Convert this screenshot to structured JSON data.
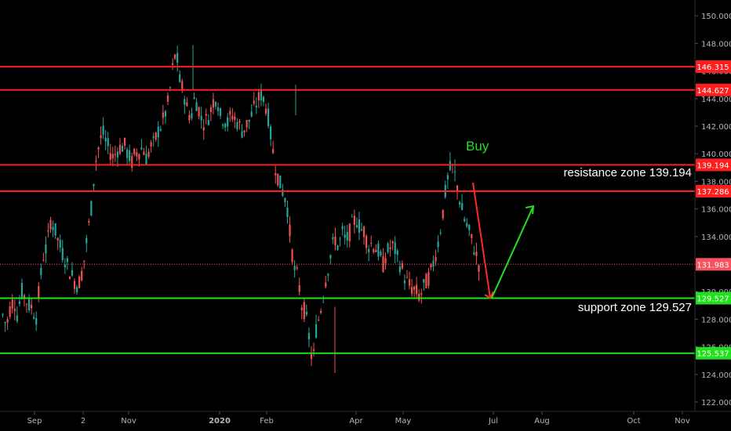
{
  "colors": {
    "background": "#000000",
    "resistance": "#ff1e1e",
    "support": "#22e01e",
    "up_candle": "#26a69a",
    "down_candle": "#ef5350",
    "axis_text": "#b2b5be",
    "current_price": "#f7525f",
    "arrow_down": "#ff2a2a",
    "arrow_up": "#22e01e"
  },
  "chart_data": {
    "type": "candlestick",
    "ylim": [
      121.6,
      150.9
    ],
    "y_ticks": [
      "122.000",
      "124.000",
      "126.000",
      "128.000",
      "130.000",
      "132.000",
      "134.000",
      "136.000",
      "138.000",
      "140.000",
      "142.000",
      "144.000",
      "146.000",
      "148.000",
      "150.000"
    ],
    "x_ticks": [
      "Sep",
      "2",
      "Nov",
      "2020",
      "Feb",
      "Apr",
      "May",
      "Jul",
      "Aug",
      "Oct",
      "Nov"
    ],
    "horizontal_levels": [
      {
        "price": 146.315,
        "label": "146.315",
        "kind": "resistance"
      },
      {
        "price": 144.627,
        "label": "144.627",
        "kind": "resistance"
      },
      {
        "price": 139.194,
        "label": "139.194",
        "kind": "resistance"
      },
      {
        "price": 137.286,
        "label": "137.286",
        "kind": "resistance"
      },
      {
        "price": 129.527,
        "label": "129.527",
        "kind": "support"
      },
      {
        "price": 125.537,
        "label": "125.537",
        "kind": "support"
      }
    ],
    "current_price": {
      "price": 131.983,
      "label": "131.983"
    },
    "annotations": {
      "buy": "Buy",
      "resistance": "resistance zone 139.194",
      "support": "support zone 129.527"
    },
    "price_path": [
      [
        128.3,
        127.5
      ],
      [
        128.8,
        129.5
      ],
      [
        128.2,
        130.1
      ],
      [
        129.6,
        129.0
      ],
      [
        128.9,
        128.0
      ],
      [
        130.5,
        132.6
      ],
      [
        133.3,
        135.2
      ],
      [
        134.6,
        133.7
      ],
      [
        132.9,
        132.3
      ],
      [
        131.6,
        131.0
      ],
      [
        130.5,
        130.8
      ],
      [
        132.2,
        134.2
      ],
      [
        136.1,
        139.2
      ],
      [
        140.5,
        141.6
      ],
      [
        140.8,
        140.2
      ],
      [
        139.7,
        140.3
      ],
      [
        140.5,
        140.6
      ],
      [
        139.9,
        139.4
      ],
      [
        140.1,
        140.2
      ],
      [
        140.5,
        139.6
      ],
      [
        140.5,
        140.7
      ],
      [
        141.6,
        142.1
      ],
      [
        142.9,
        143.9
      ],
      [
        146.1,
        147.5
      ],
      [
        145.2,
        144.5
      ],
      [
        143.2,
        142.6
      ],
      [
        144.1,
        143.4
      ],
      [
        142.3,
        142.4
      ],
      [
        142.8,
        143.8
      ],
      [
        144.2,
        142.7
      ],
      [
        142.5,
        142.2
      ],
      [
        142.9,
        142.5
      ],
      [
        142.1,
        141.6
      ],
      [
        142.1,
        142.5
      ],
      [
        143.2,
        143.8
      ],
      [
        144.3,
        143.8
      ],
      [
        142.6,
        140.6
      ],
      [
        138.9,
        137.9
      ],
      [
        137.2,
        136.4
      ],
      [
        133.7,
        131.6
      ],
      [
        131.0,
        129.0
      ],
      [
        128.5,
        126.7
      ],
      [
        124.6,
        127.5
      ],
      [
        128.4,
        130.2
      ],
      [
        131.5,
        132.9
      ],
      [
        133.9,
        133.2
      ],
      [
        134.3,
        133.6
      ],
      [
        134.3,
        135.1
      ],
      [
        135.2,
        134.5
      ],
      [
        134.4,
        133.3
      ],
      [
        133.5,
        133.2
      ],
      [
        132.8,
        131.9
      ],
      [
        132.8,
        133.2
      ],
      [
        133.3,
        132.4
      ],
      [
        131.8,
        131.0
      ],
      [
        130.5,
        130.2
      ],
      [
        130.0,
        129.6
      ],
      [
        130.3,
        130.8
      ],
      [
        131.4,
        132.4
      ],
      [
        133.6,
        135.2
      ],
      [
        137.3,
        138.8
      ],
      [
        139.0,
        137.9
      ],
      [
        136.4,
        135.3
      ],
      [
        134.6,
        133.8
      ],
      [
        132.9,
        132.0
      ]
    ]
  }
}
